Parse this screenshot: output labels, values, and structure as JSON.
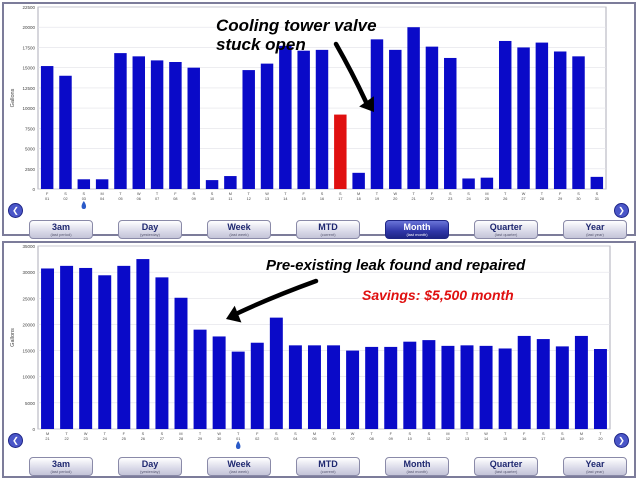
{
  "chart_data": [
    {
      "type": "bar",
      "ylabel": "Gallons",
      "ylim": [
        0,
        22500
      ],
      "yticks": [
        0,
        2500,
        5000,
        7500,
        10000,
        12500,
        15000,
        17500,
        20000,
        22500
      ],
      "bar_color": "#0a0ac8",
      "highlight_color": "#e01010",
      "highlight_index": 16,
      "x_labels": [
        [
          "F",
          "01"
        ],
        [
          "S",
          "02"
        ],
        [
          "S",
          "03"
        ],
        [
          "M",
          "04"
        ],
        [
          "T",
          "05"
        ],
        [
          "W",
          "06"
        ],
        [
          "T",
          "07"
        ],
        [
          "F",
          "08"
        ],
        [
          "S",
          "09"
        ],
        [
          "S",
          "10"
        ],
        [
          "M",
          "11"
        ],
        [
          "T",
          "12"
        ],
        [
          "W",
          "13"
        ],
        [
          "T",
          "14"
        ],
        [
          "F",
          "15"
        ],
        [
          "S",
          "16"
        ],
        [
          "S",
          "17"
        ],
        [
          "M",
          "18"
        ],
        [
          "T",
          "19"
        ],
        [
          "W",
          "20"
        ],
        [
          "T",
          "21"
        ],
        [
          "F",
          "22"
        ],
        [
          "S",
          "23"
        ],
        [
          "S",
          "24"
        ],
        [
          "M",
          "25"
        ],
        [
          "T",
          "26"
        ],
        [
          "W",
          "27"
        ],
        [
          "T",
          "28"
        ],
        [
          "F",
          "29"
        ],
        [
          "S",
          "30"
        ],
        [
          "S",
          "31"
        ]
      ],
      "values": [
        15200,
        14000,
        1200,
        1200,
        16800,
        16400,
        15900,
        15700,
        15000,
        1100,
        1600,
        14700,
        15500,
        17700,
        17100,
        17200,
        9200,
        2000,
        18500,
        17200,
        20000,
        17600,
        16200,
        1300,
        1400,
        18300,
        17500,
        18100,
        17000,
        16400,
        1500
      ],
      "marker_index": 2,
      "annotation": [
        "Cooling tower valve",
        "stuck open"
      ]
    },
    {
      "type": "bar",
      "ylabel": "Gallons",
      "ylim": [
        0,
        35000
      ],
      "yticks": [
        0,
        5000,
        10000,
        15000,
        20000,
        25000,
        30000,
        35000
      ],
      "bar_color": "#0a0ac8",
      "x_labels": [
        [
          "M",
          "21"
        ],
        [
          "T",
          "22"
        ],
        [
          "W",
          "23"
        ],
        [
          "T",
          "24"
        ],
        [
          "F",
          "25"
        ],
        [
          "S",
          "26"
        ],
        [
          "S",
          "27"
        ],
        [
          "M",
          "28"
        ],
        [
          "T",
          "29"
        ],
        [
          "W",
          "30"
        ],
        [
          "T",
          "01"
        ],
        [
          "F",
          "02"
        ],
        [
          "S",
          "03"
        ],
        [
          "S",
          "04"
        ],
        [
          "M",
          "05"
        ],
        [
          "T",
          "06"
        ],
        [
          "W",
          "07"
        ],
        [
          "T",
          "08"
        ],
        [
          "F",
          "09"
        ],
        [
          "S",
          "10"
        ],
        [
          "S",
          "11"
        ],
        [
          "M",
          "12"
        ],
        [
          "T",
          "13"
        ],
        [
          "W",
          "14"
        ],
        [
          "T",
          "15"
        ],
        [
          "F",
          "16"
        ],
        [
          "S",
          "17"
        ],
        [
          "S",
          "18"
        ],
        [
          "M",
          "19"
        ],
        [
          "T",
          "20"
        ]
      ],
      "values": [
        30700,
        31200,
        30800,
        29400,
        31200,
        32500,
        29000,
        25100,
        19000,
        17700,
        14800,
        16500,
        21300,
        16000,
        16000,
        16000,
        15000,
        15700,
        15700,
        16700,
        17000,
        15900,
        16000,
        15900,
        15400,
        17800,
        17200,
        15800,
        17800,
        15300
      ],
      "marker_index": 10,
      "annotation": "Pre-existing leak found and repaired",
      "savings": "Savings: $5,500 month"
    }
  ],
  "buttons": [
    {
      "label": "3am",
      "sub": "(last period)"
    },
    {
      "label": "Day",
      "sub": "(yesterday)"
    },
    {
      "label": "Week",
      "sub": "(last week)"
    },
    {
      "label": "MTD",
      "sub": "(current)"
    },
    {
      "label": "Month",
      "sub": "(last month)"
    },
    {
      "label": "Quarter",
      "sub": "(last quarter)"
    },
    {
      "label": "Year",
      "sub": "(last year)"
    }
  ],
  "top_active_button": "Month",
  "nav": {
    "prev_symbol": "❮",
    "next_symbol": "❯"
  }
}
